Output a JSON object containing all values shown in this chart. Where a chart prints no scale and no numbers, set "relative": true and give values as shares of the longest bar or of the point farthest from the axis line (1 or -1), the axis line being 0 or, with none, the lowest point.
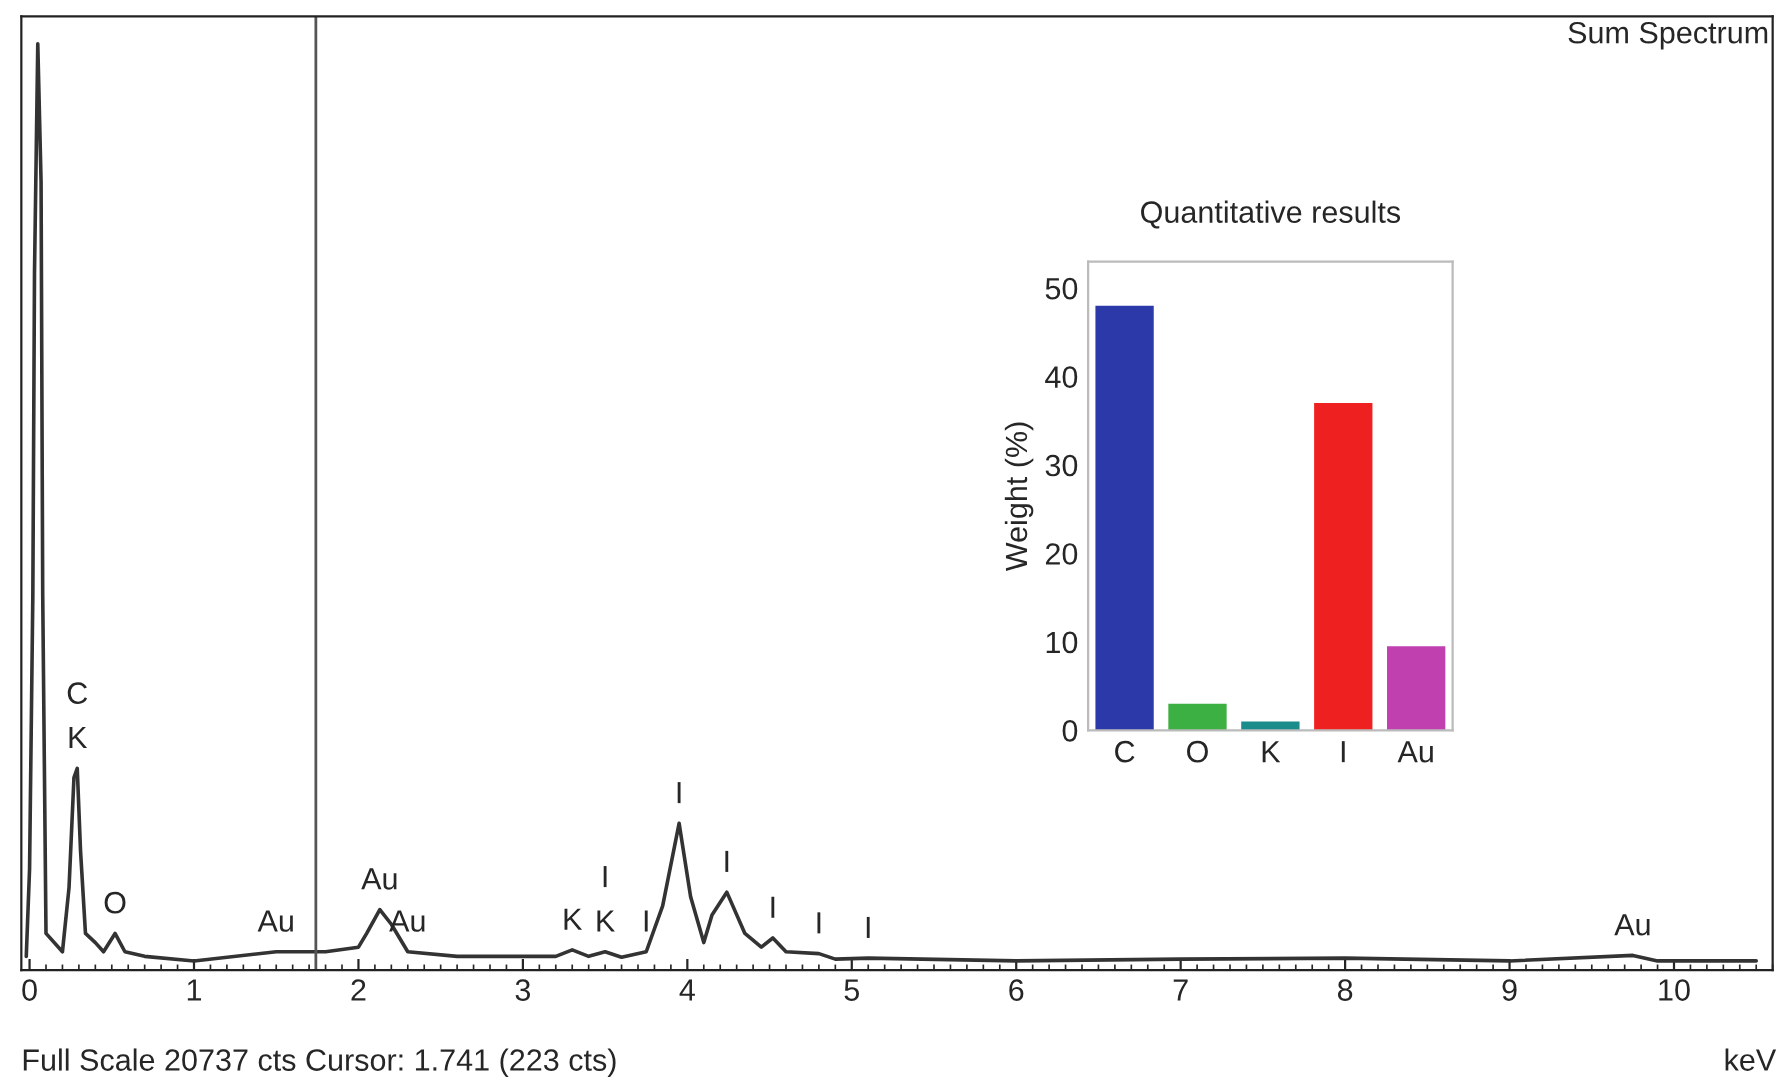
{
  "chart_data": [
    {
      "type": "line",
      "relative": true,
      "xlabel": "keV",
      "xlim": [
        -0.05,
        10.6
      ],
      "xticks": [
        0,
        1,
        2,
        3,
        4,
        5,
        6,
        7,
        8,
        9,
        10
      ],
      "grid": false,
      "legend": false,
      "x": [
        -0.02,
        0.0,
        0.02,
        0.03,
        0.05,
        0.07,
        0.08,
        0.1,
        0.2,
        0.24,
        0.27,
        0.29,
        0.31,
        0.34,
        0.4,
        0.45,
        0.52,
        0.58,
        0.7,
        1.0,
        1.5,
        1.8,
        2.0,
        2.05,
        2.13,
        2.2,
        2.3,
        2.6,
        3.2,
        3.3,
        3.4,
        3.5,
        3.6,
        3.75,
        3.85,
        3.95,
        4.02,
        4.1,
        4.15,
        4.24,
        4.35,
        4.45,
        4.52,
        4.6,
        4.8,
        4.9,
        5.1,
        6.0,
        7.0,
        8.0,
        9.0,
        9.75,
        9.9,
        10.5
      ],
      "series": [
        {
          "color": "#333333",
          "values": [
            0.005,
            0.1,
            0.4,
            0.75,
            1.0,
            0.85,
            0.4,
            0.03,
            0.01,
            0.08,
            0.2,
            0.21,
            0.12,
            0.03,
            0.02,
            0.01,
            0.03,
            0.01,
            0.005,
            0.0,
            0.01,
            0.01,
            0.015,
            0.03,
            0.056,
            0.04,
            0.01,
            0.005,
            0.005,
            0.012,
            0.005,
            0.01,
            0.004,
            0.01,
            0.06,
            0.15,
            0.07,
            0.02,
            0.05,
            0.075,
            0.03,
            0.015,
            0.025,
            0.01,
            0.008,
            0.002,
            0.003,
            0.0,
            0.002,
            0.003,
            0.0,
            0.006,
            0.0,
            0.0
          ]
        }
      ],
      "ref_lines": [
        {
          "axis": "x",
          "value": 1.741,
          "label": null,
          "color": "#555555"
        }
      ],
      "annotations": [
        {
          "text": "K",
          "x": 0.29,
          "y": 0.21
        },
        {
          "text": "C",
          "x": 0.29,
          "y": 0.21
        },
        {
          "text": "O",
          "x": 0.52,
          "y": 0.03
        },
        {
          "text": "Au",
          "x": 1.5,
          "y": 0.01
        },
        {
          "text": "Au",
          "x": 2.13,
          "y": 0.056
        },
        {
          "text": "Au",
          "x": 2.3,
          "y": 0.01
        },
        {
          "text": "K",
          "x": 3.3,
          "y": 0.012
        },
        {
          "text": "K",
          "x": 3.5,
          "y": 0.01
        },
        {
          "text": "I",
          "x": 3.5,
          "y": 0.01
        },
        {
          "text": "I",
          "x": 3.75,
          "y": 0.01
        },
        {
          "text": "I",
          "x": 3.95,
          "y": 0.15
        },
        {
          "text": "I",
          "x": 4.24,
          "y": 0.075
        },
        {
          "text": "I",
          "x": 4.52,
          "y": 0.025
        },
        {
          "text": "I",
          "x": 4.8,
          "y": 0.008
        },
        {
          "text": "I",
          "x": 5.1,
          "y": 0.003
        },
        {
          "text": "Au",
          "x": 9.75,
          "y": 0.006
        },
        "Sum Spectrum",
        "Full Scale 20737 cts Cursor: 1.741 (223 cts)"
      ]
    },
    {
      "type": "bar",
      "title": "Quantitative results",
      "ylabel": "Weight (%)",
      "categories": [
        "C",
        "O",
        "K",
        "I",
        "Au"
      ],
      "values": [
        48,
        3,
        1,
        37,
        9.5
      ],
      "colors": [
        "#2b3aa8",
        "#3cb043",
        "#1a8c8c",
        "#ee2020",
        "#c040b0"
      ],
      "ylim": [
        0,
        53
      ],
      "yticks": [
        0,
        10,
        20,
        30,
        40,
        50
      ],
      "grid": false,
      "legend": false
    }
  ]
}
